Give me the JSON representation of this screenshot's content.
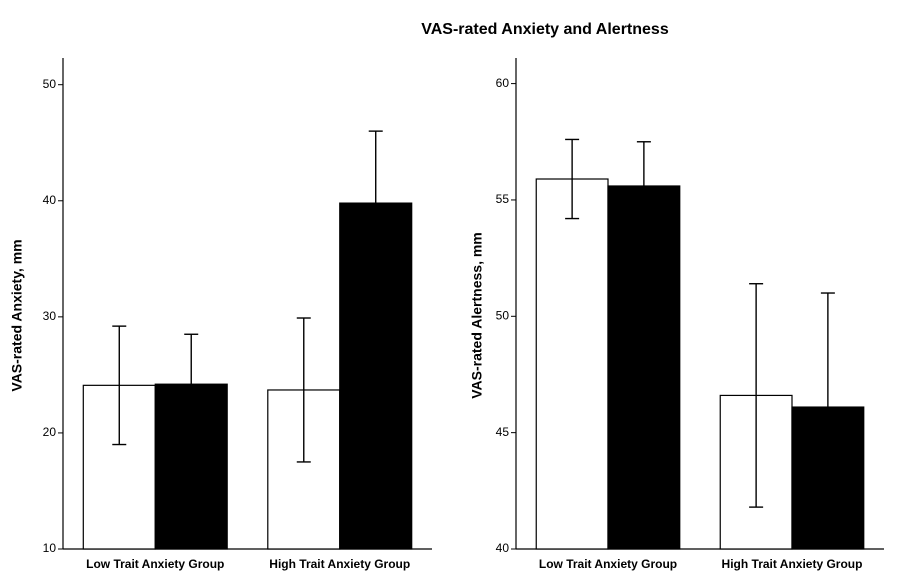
{
  "title": "VAS-rated Anxiety and Alertness",
  "chart_data": [
    {
      "type": "bar",
      "ylabel": "VAS-rated Anxiety, mm",
      "categories": [
        "Low Trait Anxiety Group",
        "High Trait Anxiety Group"
      ],
      "series": [
        {
          "color": "#ffffff",
          "values": [
            24.1,
            23.7
          ],
          "errors": [
            5.1,
            6.2
          ]
        },
        {
          "color": "#000000",
          "values": [
            24.2,
            39.8
          ],
          "errors": [
            4.3,
            6.2
          ]
        }
      ],
      "ylim": [
        10,
        52.3
      ],
      "yticks": [
        10,
        20,
        30,
        40,
        50
      ]
    },
    {
      "type": "bar",
      "ylabel": "VAS-rated Alertness, mm",
      "categories": [
        "Low Trait Anxiety Group",
        "High Trait Anxiety Group"
      ],
      "series": [
        {
          "color": "#ffffff",
          "values": [
            55.9,
            46.6
          ],
          "errors": [
            1.7,
            4.8
          ]
        },
        {
          "color": "#000000",
          "values": [
            55.6,
            46.1
          ],
          "errors": [
            1.9,
            4.9
          ]
        }
      ],
      "ylim": [
        40,
        61.1
      ],
      "yticks": [
        40,
        45,
        50,
        55,
        60
      ]
    }
  ]
}
